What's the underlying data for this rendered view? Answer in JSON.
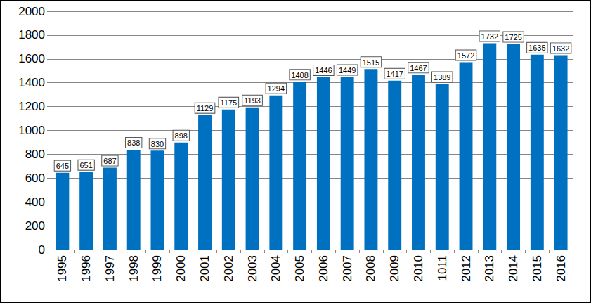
{
  "chart_data": {
    "type": "bar",
    "categories": [
      "1995",
      "1996",
      "1997",
      "1998",
      "1999",
      "2000",
      "2001",
      "2002",
      "2003",
      "2004",
      "2005",
      "2006",
      "2007",
      "2008",
      "2009",
      "2010",
      "1011",
      "2012",
      "2013",
      "2014",
      "2015",
      "2016"
    ],
    "values": [
      645,
      651,
      687,
      838,
      830,
      898,
      1129,
      1175,
      1193,
      1294,
      1408,
      1446,
      1449,
      1515,
      1417,
      1467,
      1389,
      1572,
      1732,
      1725,
      1635,
      1632
    ],
    "color": "#0070c0",
    "ylim": [
      0,
      2000
    ],
    "yticks": [
      0,
      200,
      400,
      600,
      800,
      1000,
      1200,
      1400,
      1600,
      1800,
      2000
    ],
    "grid": true,
    "data_labels": true
  }
}
